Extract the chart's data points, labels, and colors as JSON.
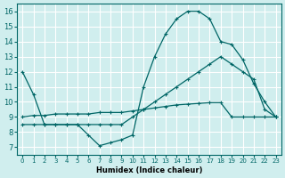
{
  "bg_color": "#d0eeee",
  "grid_color": "#ffffff",
  "line_color": "#006666",
  "marker": "+",
  "xlabel": "Humidex (Indice chaleur)",
  "ylim": [
    6.5,
    16.5
  ],
  "xlim": [
    -0.5,
    23.5
  ],
  "yticks": [
    7,
    8,
    9,
    10,
    11,
    12,
    13,
    14,
    15,
    16
  ],
  "xticks": [
    0,
    1,
    2,
    3,
    4,
    5,
    6,
    7,
    8,
    9,
    10,
    11,
    12,
    13,
    14,
    15,
    16,
    17,
    18,
    19,
    20,
    21,
    22,
    23
  ],
  "line1_x": [
    0,
    1,
    2,
    3,
    4,
    5,
    6,
    7,
    8,
    9,
    10,
    11,
    12,
    13,
    14,
    15,
    16,
    17,
    18,
    19,
    20,
    21,
    22,
    23
  ],
  "line1_y": [
    12,
    10.5,
    8.5,
    8.5,
    8.5,
    8.5,
    7.8,
    7.1,
    7.3,
    7.5,
    7.8,
    11.0,
    13.0,
    14.5,
    15.5,
    16.0,
    16.0,
    15.5,
    14.0,
    13.8,
    12.8,
    11.2,
    10.0,
    9.0
  ],
  "line2_x": [
    0,
    1,
    2,
    3,
    4,
    5,
    6,
    7,
    8,
    9,
    10,
    11,
    12,
    13,
    14,
    15,
    16,
    17,
    18,
    19,
    20,
    21,
    22,
    23
  ],
  "line2_y": [
    9.0,
    9.1,
    9.1,
    9.2,
    9.2,
    9.2,
    9.2,
    9.3,
    9.3,
    9.3,
    9.4,
    9.5,
    9.6,
    9.7,
    9.8,
    9.85,
    9.9,
    9.95,
    9.95,
    9.0,
    9.0,
    9.0,
    9.0,
    9.0
  ],
  "line3_x": [
    0,
    1,
    2,
    3,
    4,
    5,
    6,
    7,
    8,
    9,
    10,
    11,
    12,
    13,
    14,
    15,
    16,
    17,
    18,
    19,
    20,
    21,
    22,
    23
  ],
  "line3_y": [
    8.5,
    8.5,
    8.5,
    8.5,
    8.5,
    8.5,
    8.5,
    8.5,
    8.5,
    8.5,
    9.0,
    9.5,
    10.0,
    10.5,
    11.0,
    11.5,
    12.0,
    12.5,
    13.0,
    12.5,
    12.0,
    11.5,
    9.5,
    9.0
  ]
}
